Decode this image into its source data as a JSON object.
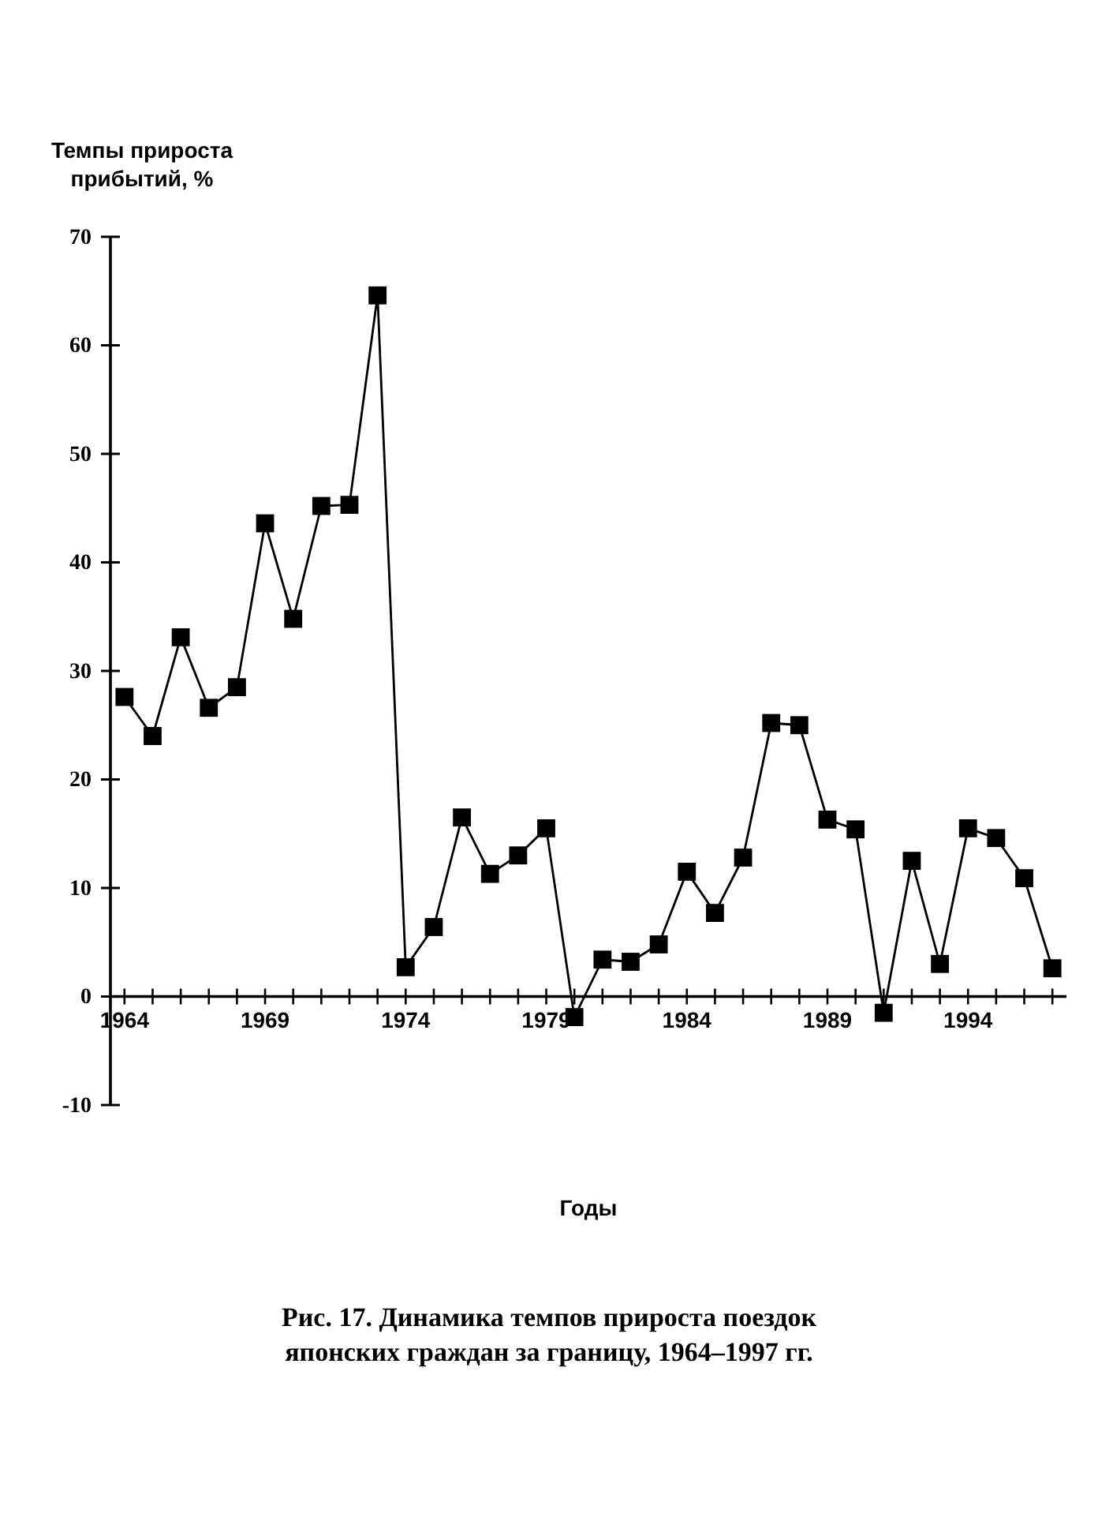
{
  "chart_data": {
    "type": "line",
    "title": "Рис. 17. Динамика темпов прироста поездок японских граждан за границу, 1964–1997 гг.",
    "xlabel": "Годы",
    "ylabel": "Темпы прироста прибытий, %",
    "x": [
      1964,
      1965,
      1966,
      1967,
      1968,
      1969,
      1970,
      1971,
      1972,
      1973,
      1974,
      1975,
      1976,
      1977,
      1978,
      1979,
      1980,
      1981,
      1982,
      1983,
      1984,
      1985,
      1986,
      1987,
      1988,
      1989,
      1990,
      1991,
      1992,
      1993,
      1994,
      1995,
      1996,
      1997
    ],
    "series": [
      {
        "color": "#000000",
        "values": [
          27.6,
          24.0,
          33.1,
          26.6,
          28.5,
          43.6,
          34.8,
          45.2,
          45.3,
          64.6,
          2.7,
          6.4,
          16.5,
          11.3,
          13.0,
          15.5,
          -1.9,
          3.4,
          3.2,
          4.8,
          11.5,
          7.7,
          12.8,
          25.2,
          25.0,
          16.3,
          15.4,
          -1.5,
          12.5,
          3.0,
          15.5,
          14.6,
          10.9,
          2.6
        ]
      }
    ],
    "xlim": [
      1963.5,
      1997.5
    ],
    "xticks": [
      1964,
      {
        "value": 1965,
        "label": null
      },
      {
        "value": 1966,
        "label": null
      },
      {
        "value": 1967,
        "label": null
      },
      {
        "value": 1968,
        "label": null
      },
      1969,
      {
        "value": 1970,
        "label": null
      },
      {
        "value": 1971,
        "label": null
      },
      {
        "value": 1972,
        "label": null
      },
      {
        "value": 1973,
        "label": null
      },
      1974,
      {
        "value": 1975,
        "label": null
      },
      {
        "value": 1976,
        "label": null
      },
      {
        "value": 1977,
        "label": null
      },
      {
        "value": 1978,
        "label": null
      },
      1979,
      {
        "value": 1980,
        "label": null
      },
      {
        "value": 1981,
        "label": null
      },
      {
        "value": 1982,
        "label": null
      },
      {
        "value": 1983,
        "label": null
      },
      1984,
      {
        "value": 1985,
        "label": null
      },
      {
        "value": 1986,
        "label": null
      },
      {
        "value": 1987,
        "label": null
      },
      {
        "value": 1988,
        "label": null
      },
      1989,
      {
        "value": 1990,
        "label": null
      },
      {
        "value": 1991,
        "label": null
      },
      {
        "value": 1992,
        "label": null
      },
      {
        "value": 1993,
        "label": null
      },
      1994,
      {
        "value": 1995,
        "label": null
      },
      {
        "value": 1996,
        "label": null
      },
      {
        "value": 1997,
        "label": null
      }
    ],
    "ylim": [
      -10,
      70
    ],
    "yticks": [
      -10,
      0,
      10,
      20,
      30,
      40,
      50,
      60,
      70
    ],
    "marker": "square",
    "line_style": "solid",
    "grid": false
  }
}
